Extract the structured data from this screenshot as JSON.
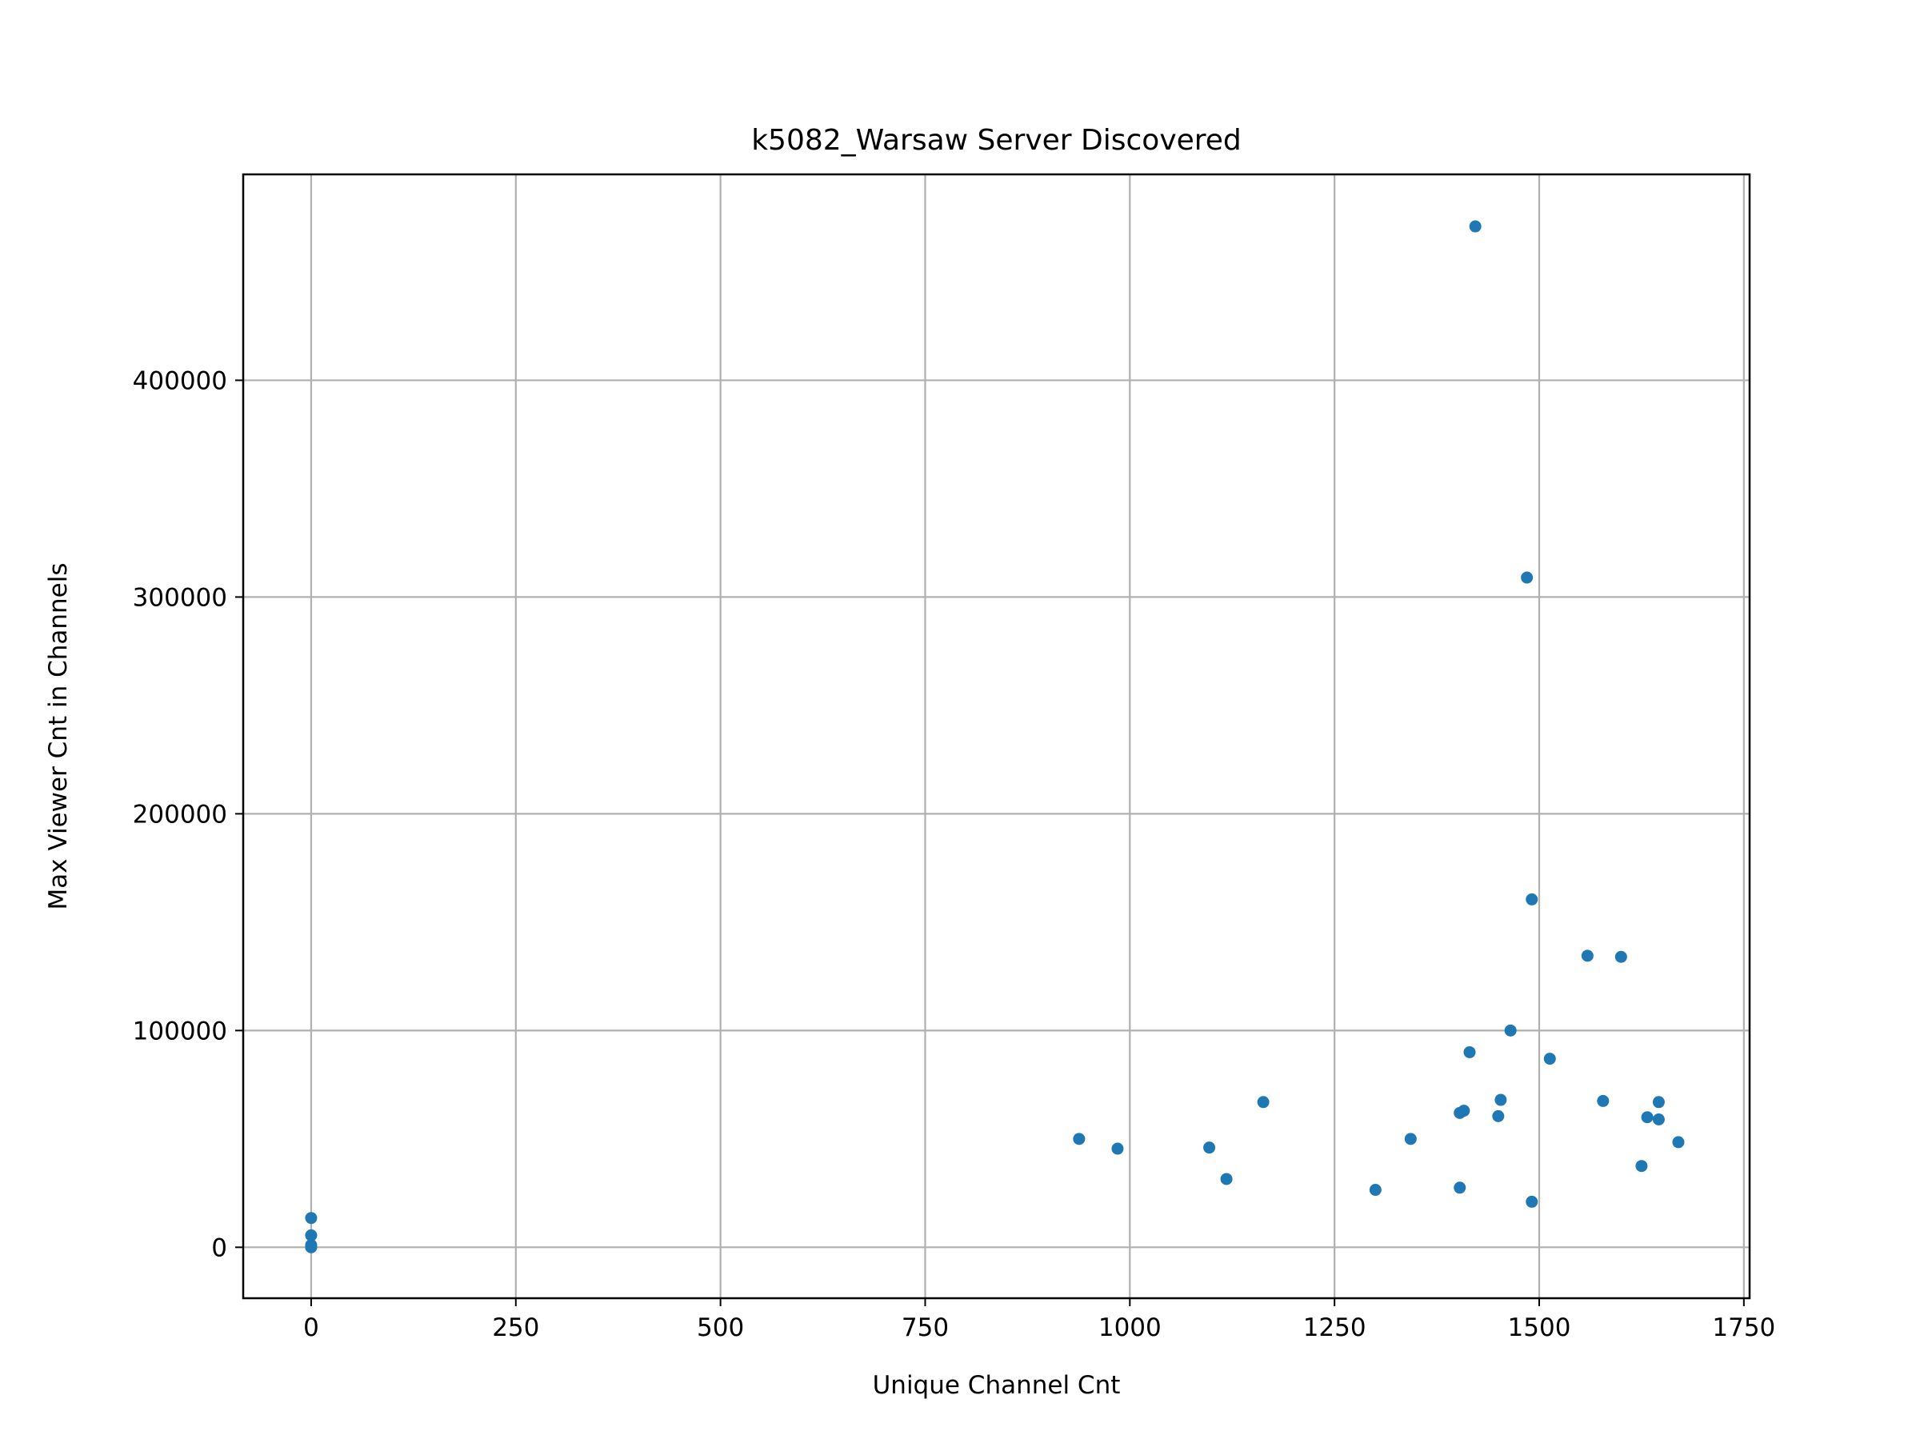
{
  "chart_data": {
    "type": "scatter",
    "title": "k5082_Warsaw Server Discovered",
    "xlabel": "Unique Channel Cnt",
    "ylabel": "Max Viewer Cnt in Channels",
    "xlim": [
      -83,
      1757
    ],
    "ylim": [
      -23500,
      495000
    ],
    "xticks": [
      0,
      250,
      500,
      750,
      1000,
      1250,
      1500,
      1750
    ],
    "xtick_labels": [
      "0",
      "250",
      "500",
      "750",
      "1000",
      "1250",
      "1500",
      "1750"
    ],
    "yticks": [
      0,
      100000,
      200000,
      300000,
      400000
    ],
    "ytick_labels": [
      "0",
      "100000",
      "200000",
      "300000",
      "400000"
    ],
    "grid": true,
    "point_color": "#1f77b4",
    "points": [
      {
        "x": 0,
        "y": 13500
      },
      {
        "x": 0,
        "y": 5500
      },
      {
        "x": 0,
        "y": 1000
      },
      {
        "x": 0,
        "y": 0
      },
      {
        "x": 938,
        "y": 50000
      },
      {
        "x": 985,
        "y": 45500
      },
      {
        "x": 1097,
        "y": 46000
      },
      {
        "x": 1118,
        "y": 31500
      },
      {
        "x": 1163,
        "y": 67000
      },
      {
        "x": 1300,
        "y": 26500
      },
      {
        "x": 1343,
        "y": 50000
      },
      {
        "x": 1403,
        "y": 62000
      },
      {
        "x": 1408,
        "y": 63000
      },
      {
        "x": 1403,
        "y": 27500
      },
      {
        "x": 1415,
        "y": 90000
      },
      {
        "x": 1422,
        "y": 471000
      },
      {
        "x": 1450,
        "y": 60500
      },
      {
        "x": 1453,
        "y": 68000
      },
      {
        "x": 1465,
        "y": 100000
      },
      {
        "x": 1485,
        "y": 309000
      },
      {
        "x": 1491,
        "y": 160500
      },
      {
        "x": 1491,
        "y": 21000
      },
      {
        "x": 1513,
        "y": 87000
      },
      {
        "x": 1559,
        "y": 134500
      },
      {
        "x": 1578,
        "y": 67500
      },
      {
        "x": 1600,
        "y": 134000
      },
      {
        "x": 1625,
        "y": 37500
      },
      {
        "x": 1632,
        "y": 60000
      },
      {
        "x": 1646,
        "y": 67000
      },
      {
        "x": 1646,
        "y": 59000
      },
      {
        "x": 1670,
        "y": 48500
      }
    ]
  }
}
